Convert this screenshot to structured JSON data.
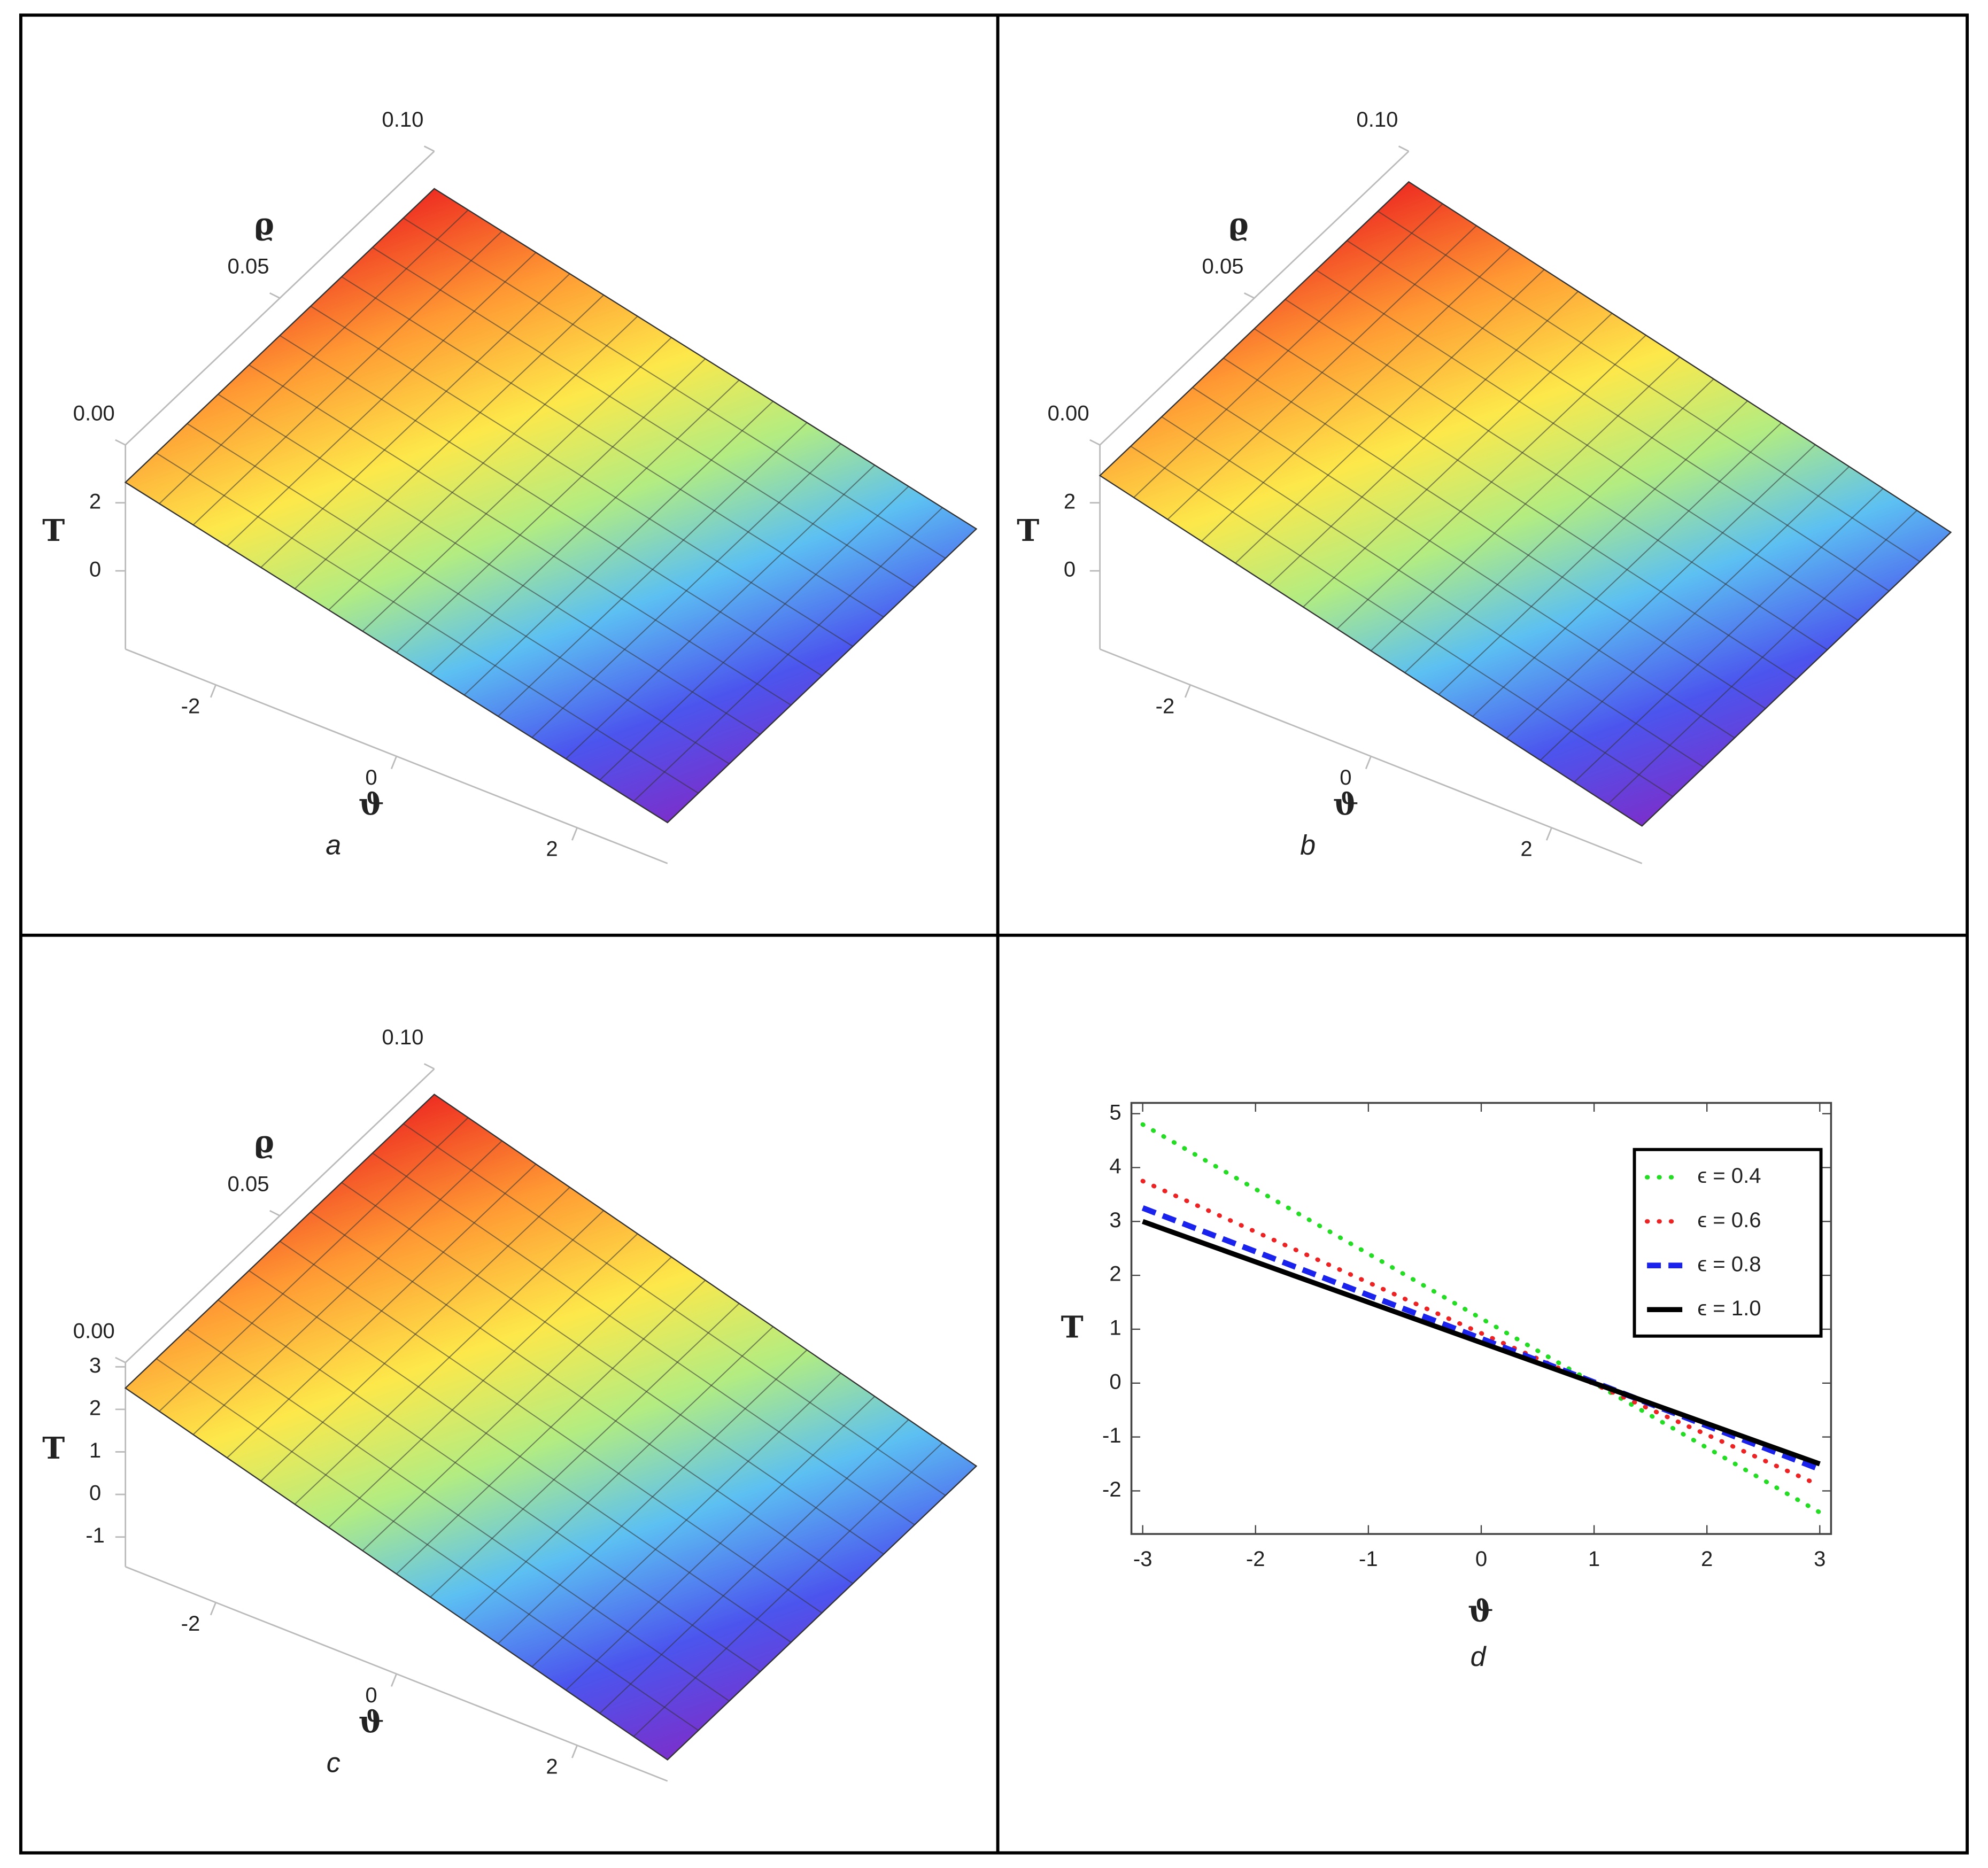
{
  "chart_data": [
    {
      "type": "surface",
      "caption": "a",
      "xlabel": "ϑ",
      "ylabel": "ϱ",
      "zlabel": "T",
      "xlim": [
        -3,
        3
      ],
      "ylim": [
        0,
        0.1
      ],
      "zlim": [
        -2.3,
        3.7
      ],
      "xticks": [
        -2,
        0,
        2
      ],
      "yticks": [
        {
          "value": 0,
          "label": "0.00"
        },
        {
          "value": 0.05,
          "label": "0.05"
        },
        {
          "value": 0.1,
          "label": "0.10"
        }
      ],
      "zticks": [
        0,
        2
      ],
      "surface": {
        "x": [
          -3,
          3
        ],
        "y": [
          0,
          0.1
        ],
        "z": [
          [
            2.6,
            -1.1
          ],
          [
            2.6,
            -1.1
          ]
        ]
      }
    },
    {
      "type": "surface",
      "caption": "b",
      "xlabel": "ϑ",
      "ylabel": "ϱ",
      "zlabel": "T",
      "xlim": [
        -3,
        3
      ],
      "ylim": [
        0,
        0.1
      ],
      "zlim": [
        -2.3,
        3.7
      ],
      "xticks": [
        -2,
        0,
        2
      ],
      "yticks": [
        {
          "value": 0,
          "label": "0.00"
        },
        {
          "value": 0.05,
          "label": "0.05"
        },
        {
          "value": 0.1,
          "label": "0.10"
        }
      ],
      "zticks": [
        0,
        2
      ],
      "surface": {
        "x": [
          -3,
          3
        ],
        "y": [
          0,
          0.1
        ],
        "z": [
          [
            2.8,
            -1.2
          ],
          [
            2.8,
            -1.2
          ]
        ]
      }
    },
    {
      "type": "surface",
      "caption": "c",
      "xlabel": "ϑ",
      "ylabel": "ϱ",
      "zlabel": "T",
      "xlim": [
        -3,
        3
      ],
      "ylim": [
        0,
        0.1
      ],
      "zlim": [
        -1.7,
        3.1
      ],
      "xticks": [
        -2,
        0,
        2
      ],
      "yticks": [
        {
          "value": 0,
          "label": "0.00"
        },
        {
          "value": 0.05,
          "label": "0.05"
        },
        {
          "value": 0.1,
          "label": "0.10"
        }
      ],
      "zticks": [
        -1,
        0,
        1,
        2,
        3
      ],
      "surface": {
        "x": [
          -3,
          3
        ],
        "y": [
          0,
          0.1
        ],
        "z": [
          [
            2.5,
            -1.2
          ],
          [
            2.5,
            -1.2
          ]
        ]
      }
    },
    {
      "type": "line",
      "caption": "d",
      "xlabel": "ϑ",
      "ylabel": "T",
      "x": [
        -3,
        3
      ],
      "xlim": [
        -3.1,
        3.1
      ],
      "ylim": [
        -2.8,
        5.2
      ],
      "xticks": [
        -3,
        -2,
        -1,
        0,
        1,
        2,
        3
      ],
      "yticks": [
        -2,
        -1,
        0,
        1,
        2,
        3,
        4,
        5
      ],
      "legend": "upper right",
      "series": [
        {
          "name": "ϵ = 0.4",
          "color": "#22dd22",
          "style": "dotted",
          "values": [
            4.8,
            -2.4
          ]
        },
        {
          "name": "ϵ = 0.6",
          "color": "#ee2222",
          "style": "dotted",
          "values": [
            3.75,
            -1.9
          ]
        },
        {
          "name": "ϵ = 0.8",
          "color": "#1a22ee",
          "style": "dashed",
          "values": [
            3.25,
            -1.6
          ]
        },
        {
          "name": "ϵ = 1.0",
          "color": "#000000",
          "style": "solid",
          "values": [
            3.0,
            -1.5
          ]
        }
      ]
    }
  ]
}
